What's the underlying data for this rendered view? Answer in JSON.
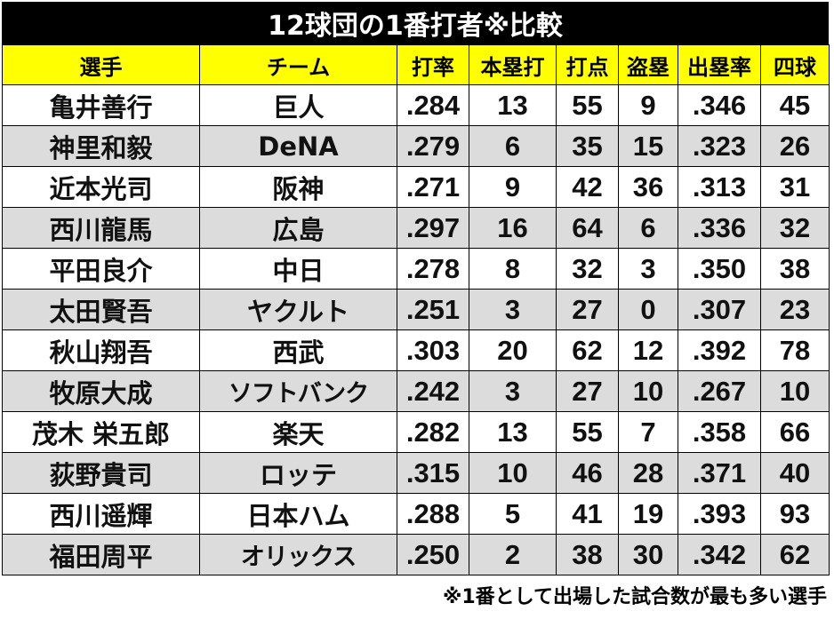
{
  "title": "12球団の1番打者※比較",
  "columns": [
    "選手",
    "チーム",
    "打率",
    "本塁打",
    "打点",
    "盗塁",
    "出塁率",
    "四球"
  ],
  "rows": [
    {
      "player": "亀井善行",
      "team": "巨人",
      "avg": ".284",
      "hr": "13",
      "rbi": "55",
      "sb": "9",
      "obp": ".346",
      "bb": "45"
    },
    {
      "player": "神里和毅",
      "team": "DeNA",
      "avg": ".279",
      "hr": "6",
      "rbi": "35",
      "sb": "15",
      "obp": ".323",
      "bb": "26"
    },
    {
      "player": "近本光司",
      "team": "阪神",
      "avg": ".271",
      "hr": "9",
      "rbi": "42",
      "sb": "36",
      "obp": ".313",
      "bb": "31"
    },
    {
      "player": "西川龍馬",
      "team": "広島",
      "avg": ".297",
      "hr": "16",
      "rbi": "64",
      "sb": "6",
      "obp": ".336",
      "bb": "32"
    },
    {
      "player": "平田良介",
      "team": "中日",
      "avg": ".278",
      "hr": "8",
      "rbi": "32",
      "sb": "3",
      "obp": ".350",
      "bb": "38"
    },
    {
      "player": "太田賢吾",
      "team": "ヤクルト",
      "avg": ".251",
      "hr": "3",
      "rbi": "27",
      "sb": "0",
      "obp": ".307",
      "bb": "23"
    },
    {
      "player": "秋山翔吾",
      "team": "西武",
      "avg": ".303",
      "hr": "20",
      "rbi": "62",
      "sb": "12",
      "obp": ".392",
      "bb": "78"
    },
    {
      "player": "牧原大成",
      "team": "ソフトバンク",
      "avg": ".242",
      "hr": "3",
      "rbi": "27",
      "sb": "10",
      "obp": ".267",
      "bb": "10"
    },
    {
      "player": "茂木 栄五郎",
      "team": "楽天",
      "avg": ".282",
      "hr": "13",
      "rbi": "55",
      "sb": "7",
      "obp": ".358",
      "bb": "66"
    },
    {
      "player": "荻野貴司",
      "team": "ロッテ",
      "avg": ".315",
      "hr": "10",
      "rbi": "46",
      "sb": "28",
      "obp": ".371",
      "bb": "40"
    },
    {
      "player": "西川遥輝",
      "team": "日本ハム",
      "avg": ".288",
      "hr": "5",
      "rbi": "41",
      "sb": "19",
      "obp": ".393",
      "bb": "93"
    },
    {
      "player": "福田周平",
      "team": "オリックス",
      "avg": ".250",
      "hr": "2",
      "rbi": "38",
      "sb": "30",
      "obp": ".342",
      "bb": "62"
    }
  ],
  "footnote": "※1番として出場した試合数が最も多い選手",
  "colors": {
    "title_bg": "#000000",
    "title_fg": "#ffffff",
    "header_bg": "#ffff00",
    "row_alt_bg": "#dcdcdc",
    "row_bg": "#ffffff"
  }
}
